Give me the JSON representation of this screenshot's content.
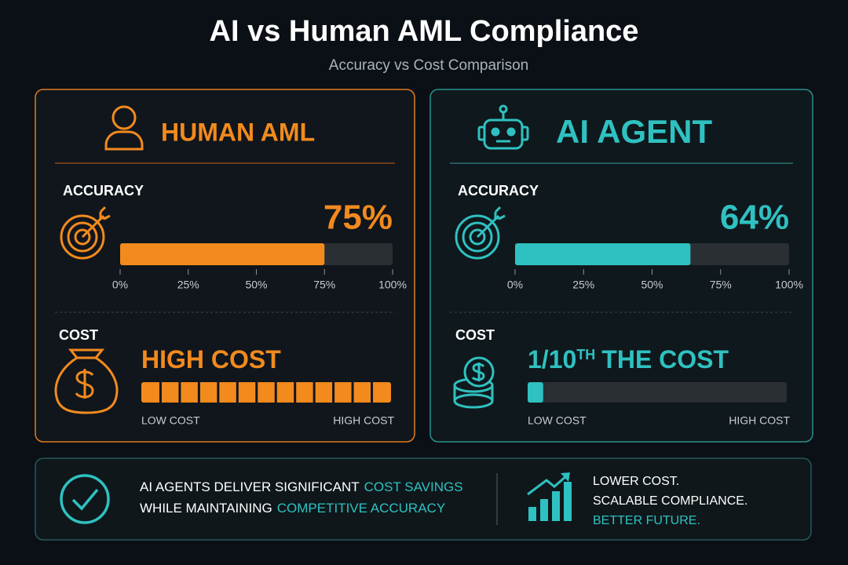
{
  "header": {
    "title": "AI vs Human AML Compliance",
    "subtitle": "Accuracy vs Cost Comparison"
  },
  "panels": [
    {
      "name": "HUMAN AML",
      "color": "#f28a1e",
      "accuracy": {
        "label": "ACCURACY",
        "value": 75,
        "value_label": "75%",
        "lim": [
          0,
          100
        ],
        "ticks": [
          {
            "value": 0,
            "label": "0%"
          },
          {
            "value": 25,
            "label": "25%"
          },
          {
            "value": 50,
            "label": "50%"
          },
          {
            "value": 75,
            "label": "75%"
          },
          {
            "value": 100,
            "label": "100%"
          }
        ]
      },
      "cost": {
        "label": "COST",
        "text": "HIGH COST",
        "level": 100,
        "lim": [
          0,
          100
        ],
        "style": "segmented",
        "low_label": "LOW COST",
        "high_label": "HIGH COST"
      }
    },
    {
      "name": "AI AGENT",
      "color": "#2fc1c1",
      "accuracy": {
        "label": "ACCURACY",
        "value": 64,
        "value_label": "64%",
        "lim": [
          0,
          100
        ],
        "ticks": [
          {
            "value": 0,
            "label": "0%"
          },
          {
            "value": 25,
            "label": "25%"
          },
          {
            "value": 50,
            "label": "50%"
          },
          {
            "value": 75,
            "label": "75%"
          },
          {
            "value": 100,
            "label": "100%"
          }
        ]
      },
      "cost": {
        "label": "COST",
        "text": "1/10",
        "superscript": "TH",
        "text_after": "THE COST",
        "level": 6,
        "lim": [
          0,
          100
        ],
        "style": "solid",
        "low_label": "LOW COST",
        "high_label": "HIGH COST"
      }
    }
  ],
  "summary": {
    "lines": [
      [
        "AI AGENTS DELIVER SIGNIFICANT",
        "COST SAVINGS"
      ],
      [
        "WHILE MAINTAINING",
        "COMPETITIVE ACCURACY"
      ]
    ],
    "tagline": [
      "LOWER COST.",
      "SCALABLE COMPLIANCE.",
      "BETTER FUTURE."
    ]
  }
}
